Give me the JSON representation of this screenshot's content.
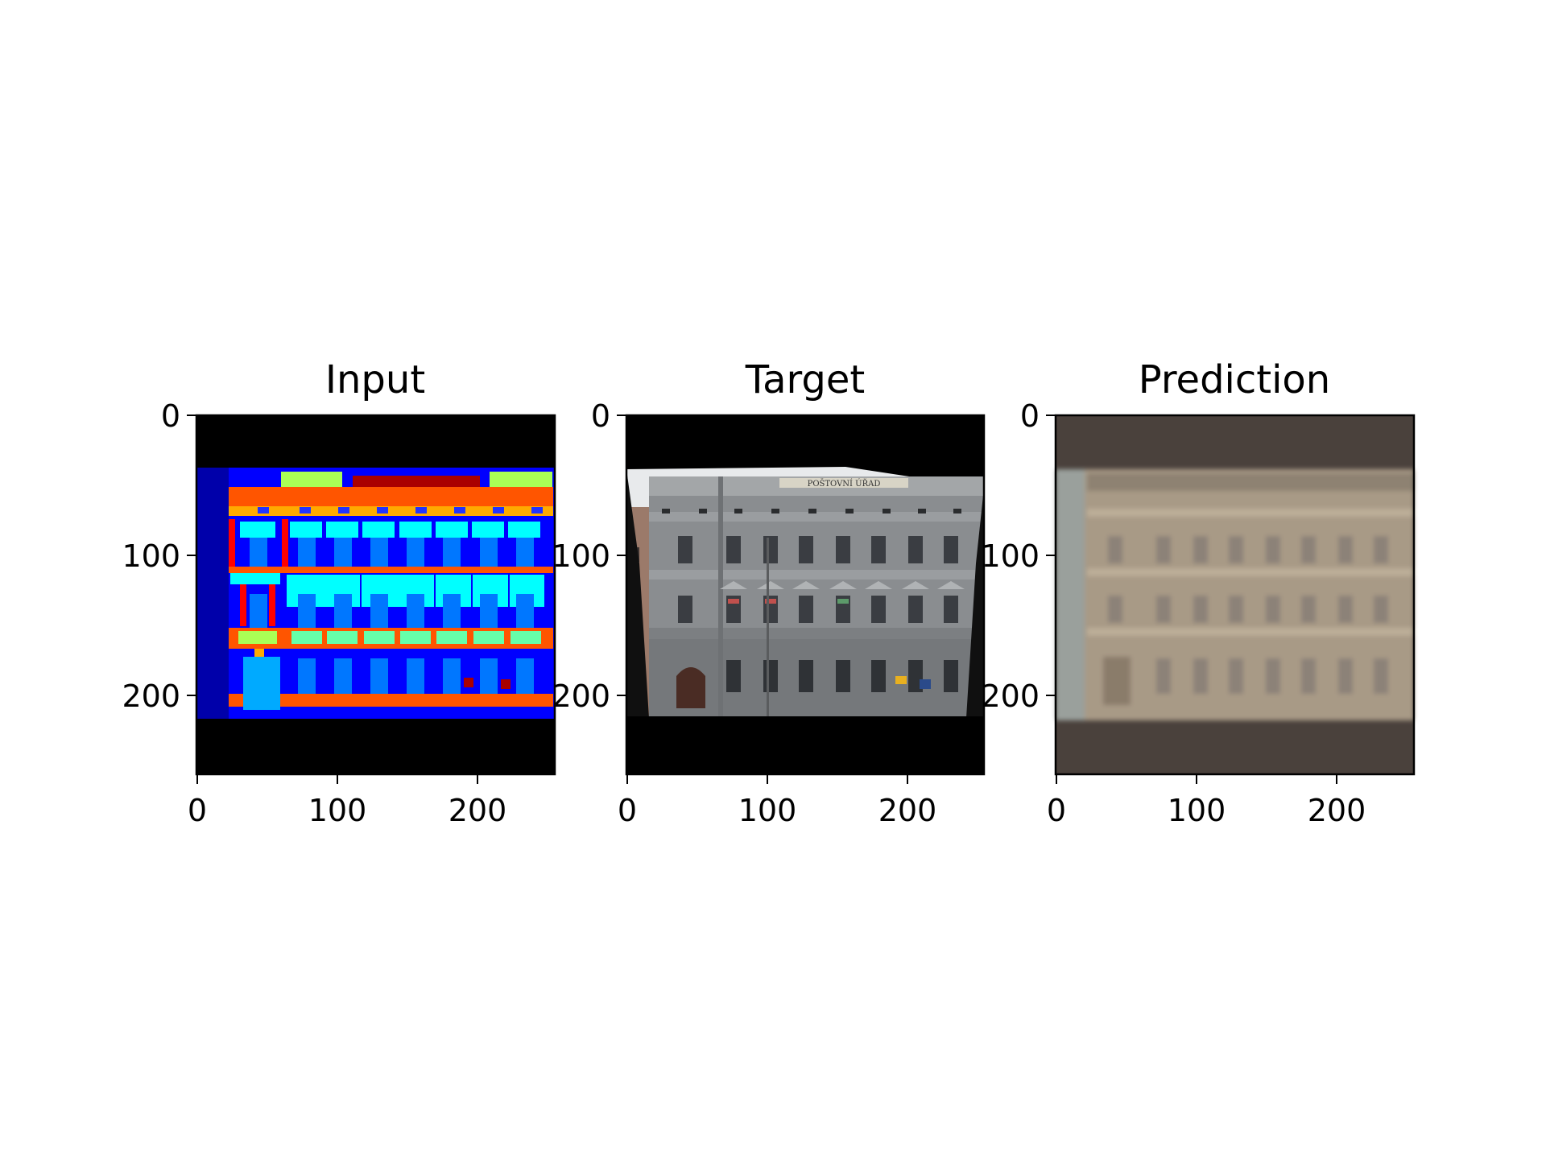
{
  "panels": [
    {
      "title": "Input",
      "xticks": [
        "0",
        "100",
        "200"
      ],
      "yticks": [
        "0",
        "100",
        "200"
      ]
    },
    {
      "title": "Target",
      "xticks": [
        "0",
        "100",
        "200"
      ],
      "yticks": [
        "0",
        "100",
        "200"
      ]
    },
    {
      "title": "Prediction",
      "xticks": [
        "0",
        "100",
        "200"
      ],
      "yticks": [
        "0",
        "100",
        "200"
      ]
    }
  ],
  "target_image": {
    "sign_text": "POŠTOVNÍ ÚŘAD"
  },
  "colors": {
    "segmentation_background": "#0000ff",
    "segmentation_margin": "#0000aa",
    "segmentation_cornice": "#ff5500",
    "segmentation_window": "#0077ff",
    "segmentation_balcony": "#00ffff",
    "segmentation_sill": "#66ffaa",
    "segmentation_deco": "#aaff55",
    "segmentation_shop": "#aa0000",
    "prediction_facade": "#a89a86",
    "prediction_frame": "#4a413c"
  }
}
